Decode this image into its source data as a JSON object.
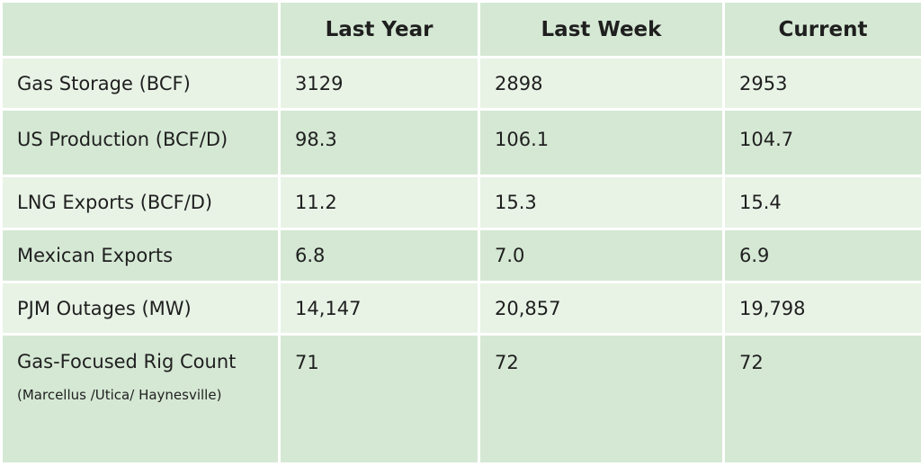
{
  "header": {
    "col0": "",
    "col1": "Last Year",
    "col2": "Last Week",
    "col3": "Current"
  },
  "rows": [
    {
      "label": "Gas Storage (BCF)",
      "last_year": "3129",
      "last_week": "2898",
      "current": "2953"
    },
    {
      "label": "US Production (BCF/D)",
      "last_year": "98.3",
      "last_week": "106.1",
      "current": "104.7"
    },
    {
      "label": "LNG Exports (BCF/D)",
      "last_year": "11.2",
      "last_week": "15.3",
      "current": "15.4"
    },
    {
      "label": "Mexican Exports",
      "last_year": "6.8",
      "last_week": "7.0",
      "current": "6.9"
    },
    {
      "label": "PJM Outages (MW)",
      "last_year": "14,147",
      "last_week": "20,857",
      "current": "19,798"
    },
    {
      "label": "Gas-Focused Rig Count",
      "sublabel": "(Marcellus /Utica/ Haynesville)",
      "last_year": "71",
      "last_week": "72",
      "current": "72"
    }
  ],
  "colors": {
    "header_bg": "#d5e8d4",
    "row_light": "#e8f3e6",
    "row_dark": "#d5e8d4",
    "border": "#ffffff"
  }
}
